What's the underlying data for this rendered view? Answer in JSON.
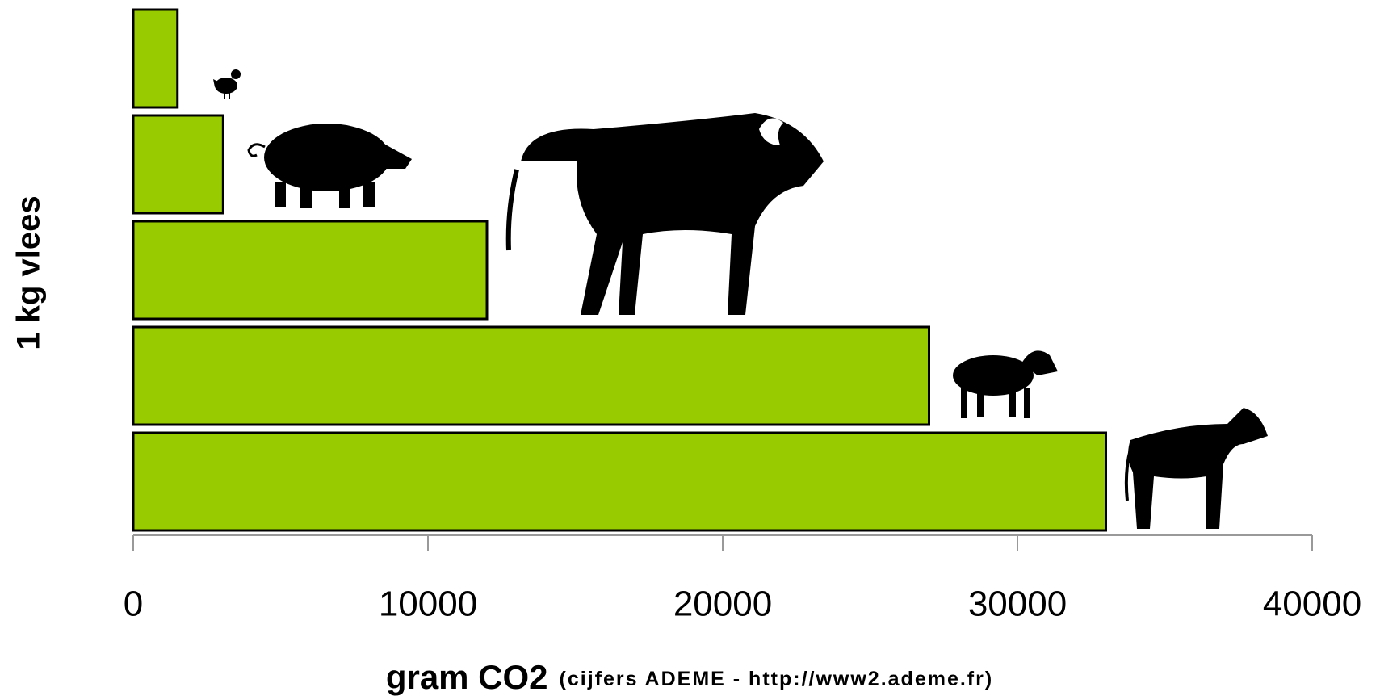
{
  "chart_data": {
    "type": "bar",
    "orientation": "horizontal",
    "categories": [
      null,
      null,
      null,
      null,
      null
    ],
    "values": [
      1500,
      3050,
      12000,
      27000,
      33000
    ],
    "color": "#99cc00",
    "xlim": [
      0,
      40000
    ],
    "xticks": [
      0,
      10000,
      20000,
      30000,
      40000
    ],
    "x_label": "gram CO2",
    "x_label_note": "(cijfers ADEME - http://www2.ademe.fr)",
    "y_label": "1 kg vlees",
    "grid": false
  }
}
